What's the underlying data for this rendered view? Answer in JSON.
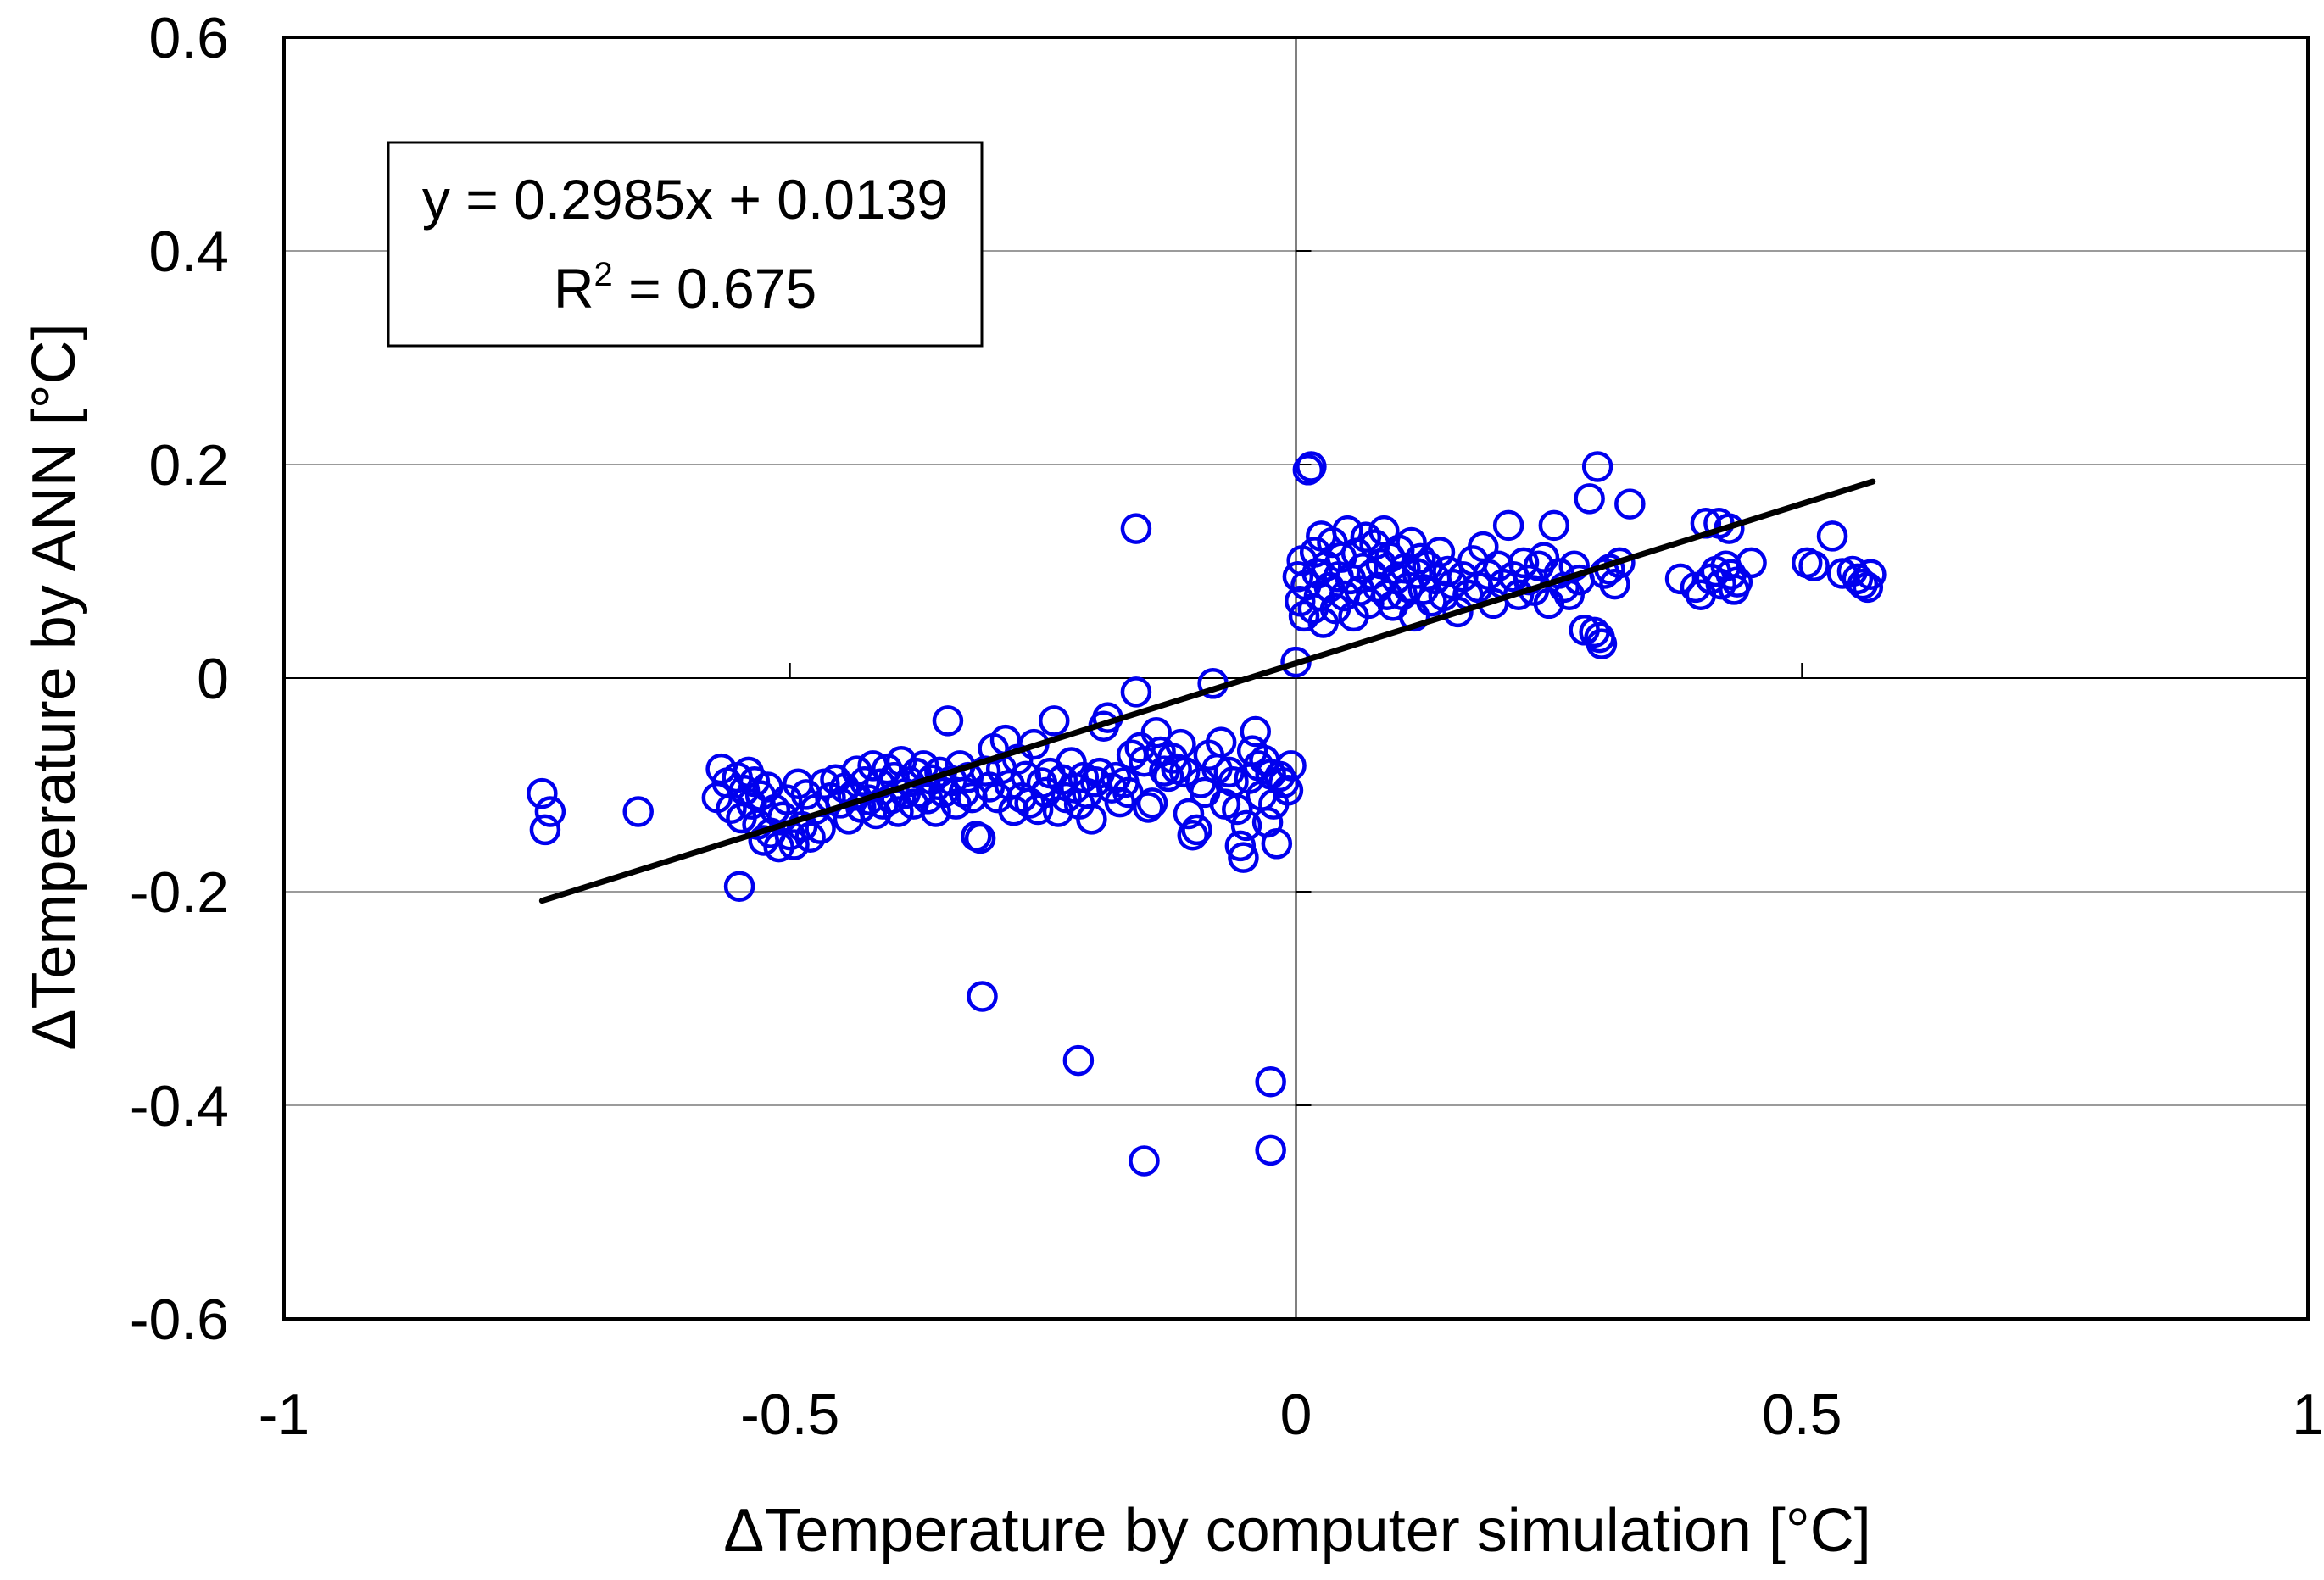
{
  "chart_data": {
    "type": "scatter",
    "xlabel": "ΔTemperature by computer simulation [°C]",
    "ylabel": "ΔTemperature  by ANN [°C]",
    "xlim": [
      -1,
      1
    ],
    "ylim": [
      -0.6,
      0.6
    ],
    "x_ticks": [
      {
        "value": -1,
        "label": "-1"
      },
      {
        "value": -0.5,
        "label": "-0.5"
      },
      {
        "value": 0,
        "label": "0"
      },
      {
        "value": 0.5,
        "label": "0.5"
      },
      {
        "value": 1,
        "label": "1"
      }
    ],
    "y_ticks": [
      {
        "value": -0.6,
        "label": "-0.6"
      },
      {
        "value": -0.4,
        "label": "-0.4"
      },
      {
        "value": -0.2,
        "label": "-0.2"
      },
      {
        "value": 0,
        "label": "0"
      },
      {
        "value": 0.2,
        "label": "0.2"
      },
      {
        "value": 0.4,
        "label": "0.4"
      },
      {
        "value": 0.6,
        "label": "0.6"
      }
    ],
    "grid": "horizontal",
    "marker_color": "#0000ee",
    "marker": "open-circle",
    "trendline": {
      "slope": 0.2985,
      "intercept": 0.0139,
      "x_range": [
        -0.745,
        0.57
      ],
      "color": "#000000"
    },
    "equation": {
      "line1": "y = 0.2985x + 0.0139",
      "r2_prefix": "R",
      "r2_sup": "2",
      "r2_value": " = 0.675"
    },
    "points": [
      [
        -0.745,
        -0.108
      ],
      [
        -0.742,
        -0.142
      ],
      [
        -0.737,
        -0.125
      ],
      [
        -0.65,
        -0.125
      ],
      [
        -0.572,
        -0.112
      ],
      [
        -0.568,
        -0.085
      ],
      [
        -0.562,
        -0.098
      ],
      [
        -0.558,
        -0.122
      ],
      [
        -0.552,
        -0.093
      ],
      [
        -0.548,
        -0.131
      ],
      [
        -0.545,
        -0.105
      ],
      [
        -0.541,
        -0.088
      ],
      [
        -0.538,
        -0.118
      ],
      [
        -0.535,
        -0.097
      ],
      [
        -0.532,
        -0.137
      ],
      [
        -0.529,
        -0.11
      ],
      [
        -0.526,
        -0.152
      ],
      [
        -0.522,
        -0.102
      ],
      [
        -0.519,
        -0.145
      ],
      [
        -0.515,
        -0.123
      ],
      [
        -0.511,
        -0.158
      ],
      [
        -0.507,
        -0.13
      ],
      [
        -0.503,
        -0.114
      ],
      [
        -0.5,
        -0.147
      ],
      [
        -0.496,
        -0.156
      ],
      [
        -0.492,
        -0.099
      ],
      [
        -0.488,
        -0.139
      ],
      [
        -0.484,
        -0.109
      ],
      [
        -0.48,
        -0.149
      ],
      [
        -0.475,
        -0.123
      ],
      [
        -0.47,
        -0.141
      ],
      [
        -0.466,
        -0.099
      ],
      [
        -0.55,
        -0.195
      ],
      [
        -0.46,
        -0.112
      ],
      [
        -0.455,
        -0.095
      ],
      [
        -0.45,
        -0.117
      ],
      [
        -0.446,
        -0.103
      ],
      [
        -0.442,
        -0.132
      ],
      [
        -0.438,
        -0.11
      ],
      [
        -0.434,
        -0.087
      ],
      [
        -0.43,
        -0.121
      ],
      [
        -0.426,
        -0.097
      ],
      [
        -0.422,
        -0.114
      ],
      [
        -0.418,
        -0.082
      ],
      [
        -0.415,
        -0.127
      ],
      [
        -0.411,
        -0.099
      ],
      [
        -0.408,
        -0.118
      ],
      [
        -0.404,
        -0.085
      ],
      [
        -0.4,
        -0.113
      ],
      [
        -0.397,
        -0.093
      ],
      [
        -0.393,
        -0.125
      ],
      [
        -0.39,
        -0.078
      ],
      [
        -0.386,
        -0.108
      ],
      [
        -0.382,
        -0.097
      ],
      [
        -0.378,
        -0.118
      ],
      [
        -0.375,
        -0.089
      ],
      [
        -0.371,
        -0.107
      ],
      [
        -0.368,
        -0.082
      ],
      [
        -0.364,
        -0.113
      ],
      [
        -0.36,
        -0.095
      ],
      [
        -0.356,
        -0.125
      ],
      [
        -0.352,
        -0.088
      ],
      [
        -0.348,
        -0.107
      ],
      [
        -0.344,
        -0.04
      ],
      [
        -0.34,
        -0.096
      ],
      [
        -0.336,
        -0.118
      ],
      [
        -0.332,
        -0.082
      ],
      [
        -0.328,
        -0.107
      ],
      [
        -0.324,
        -0.093
      ],
      [
        -0.32,
        -0.112
      ],
      [
        -0.316,
        -0.148
      ],
      [
        -0.312,
        -0.15
      ],
      [
        -0.307,
        -0.087
      ],
      [
        -0.303,
        -0.102
      ],
      [
        -0.299,
        -0.066
      ],
      [
        -0.295,
        -0.112
      ],
      [
        -0.291,
        -0.085
      ],
      [
        -0.287,
        -0.058
      ],
      [
        -0.283,
        -0.1
      ],
      [
        -0.279,
        -0.124
      ],
      [
        -0.275,
        -0.076
      ],
      [
        -0.271,
        -0.112
      ],
      [
        -0.267,
        -0.092
      ],
      [
        -0.263,
        -0.117
      ],
      [
        -0.259,
        -0.062
      ],
      [
        -0.255,
        -0.123
      ],
      [
        -0.251,
        -0.098
      ],
      [
        -0.247,
        -0.107
      ],
      [
        -0.243,
        -0.089
      ],
      [
        -0.239,
        -0.04
      ],
      [
        -0.235,
        -0.125
      ],
      [
        -0.231,
        -0.095
      ],
      [
        -0.227,
        -0.112
      ],
      [
        -0.222,
        -0.079
      ],
      [
        -0.218,
        -0.103
      ],
      [
        -0.214,
        -0.118
      ],
      [
        -0.21,
        -0.093
      ],
      [
        -0.206,
        -0.108
      ],
      [
        -0.202,
        -0.132
      ],
      [
        -0.198,
        -0.097
      ],
      [
        -0.194,
        -0.089
      ],
      [
        -0.19,
        -0.045
      ],
      [
        -0.186,
        -0.037
      ],
      [
        -0.182,
        -0.103
      ],
      [
        -0.178,
        -0.093
      ],
      [
        -0.174,
        -0.116
      ],
      [
        -0.17,
        -0.098
      ],
      [
        -0.166,
        -0.107
      ],
      [
        -0.162,
        -0.072
      ],
      [
        -0.158,
        -0.013
      ],
      [
        -0.154,
        -0.065
      ],
      [
        -0.15,
        -0.078
      ],
      [
        -0.146,
        -0.121
      ],
      [
        -0.142,
        -0.117
      ],
      [
        -0.138,
        -0.051
      ],
      [
        -0.134,
        -0.069
      ],
      [
        -0.13,
        -0.087
      ],
      [
        -0.126,
        -0.092
      ],
      [
        -0.122,
        -0.075
      ],
      [
        -0.118,
        -0.085
      ],
      [
        -0.114,
        -0.062
      ],
      [
        -0.11,
        -0.088
      ],
      [
        -0.106,
        -0.127
      ],
      [
        -0.102,
        -0.147
      ],
      [
        -0.098,
        -0.142
      ],
      [
        -0.094,
        -0.098
      ],
      [
        -0.09,
        -0.107
      ],
      [
        -0.086,
        -0.072
      ],
      [
        -0.082,
        -0.005
      ],
      [
        -0.078,
        -0.085
      ],
      [
        -0.074,
        -0.06
      ],
      [
        -0.07,
        -0.118
      ],
      [
        -0.066,
        -0.088
      ],
      [
        -0.062,
        -0.097
      ],
      [
        -0.058,
        -0.123
      ],
      [
        -0.055,
        -0.157
      ],
      [
        -0.052,
        -0.168
      ],
      [
        -0.049,
        -0.138
      ],
      [
        -0.046,
        -0.094
      ],
      [
        -0.043,
        -0.068
      ],
      [
        -0.04,
        -0.05
      ],
      [
        -0.037,
        -0.082
      ],
      [
        -0.034,
        -0.11
      ],
      [
        -0.031,
        -0.077
      ],
      [
        -0.028,
        -0.135
      ],
      [
        -0.025,
        -0.09
      ],
      [
        -0.022,
        -0.118
      ],
      [
        -0.019,
        -0.155
      ],
      [
        -0.016,
        -0.092
      ],
      [
        -0.012,
        -0.098
      ],
      [
        -0.008,
        -0.105
      ],
      [
        -0.005,
        -0.082
      ],
      [
        -0.158,
        0.14
      ],
      [
        -0.31,
        -0.298
      ],
      [
        -0.215,
        -0.358
      ],
      [
        -0.15,
        -0.452
      ],
      [
        -0.025,
        -0.378
      ],
      [
        -0.025,
        -0.442
      ],
      [
        0.0,
        0.015
      ],
      [
        0.002,
        0.095
      ],
      [
        0.004,
        0.072
      ],
      [
        0.006,
        0.11
      ],
      [
        0.008,
        0.058
      ],
      [
        0.01,
        0.087
      ],
      [
        0.012,
        0.195
      ],
      [
        0.015,
        0.198
      ],
      [
        0.017,
        0.065
      ],
      [
        0.019,
        0.118
      ],
      [
        0.021,
        0.098
      ],
      [
        0.023,
        0.077
      ],
      [
        0.025,
        0.133
      ],
      [
        0.027,
        0.052
      ],
      [
        0.03,
        0.105
      ],
      [
        0.033,
        0.085
      ],
      [
        0.036,
        0.127
      ],
      [
        0.039,
        0.065
      ],
      [
        0.042,
        0.095
      ],
      [
        0.045,
        0.113
      ],
      [
        0.048,
        0.077
      ],
      [
        0.051,
        0.138
      ],
      [
        0.054,
        0.093
      ],
      [
        0.057,
        0.058
      ],
      [
        0.06,
        0.117
      ],
      [
        0.063,
        0.082
      ],
      [
        0.066,
        0.103
      ],
      [
        0.069,
        0.132
      ],
      [
        0.072,
        0.07
      ],
      [
        0.075,
        0.097
      ],
      [
        0.078,
        0.125
      ],
      [
        0.081,
        0.085
      ],
      [
        0.084,
        0.107
      ],
      [
        0.087,
        0.138
      ],
      [
        0.09,
        0.078
      ],
      [
        0.093,
        0.113
      ],
      [
        0.096,
        0.068
      ],
      [
        0.099,
        0.093
      ],
      [
        0.102,
        0.12
      ],
      [
        0.105,
        0.078
      ],
      [
        0.108,
        0.103
      ],
      [
        0.111,
        0.085
      ],
      [
        0.114,
        0.127
      ],
      [
        0.117,
        0.058
      ],
      [
        0.12,
        0.098
      ],
      [
        0.123,
        0.112
      ],
      [
        0.126,
        0.083
      ],
      [
        0.13,
        0.105
      ],
      [
        0.134,
        0.072
      ],
      [
        0.138,
        0.093
      ],
      [
        0.142,
        0.118
      ],
      [
        0.146,
        0.077
      ],
      [
        0.15,
        0.1
      ],
      [
        0.155,
        0.088
      ],
      [
        0.16,
        0.062
      ],
      [
        0.165,
        0.095
      ],
      [
        0.17,
        0.078
      ],
      [
        0.175,
        0.11
      ],
      [
        0.18,
        0.085
      ],
      [
        0.185,
        0.123
      ],
      [
        0.19,
        0.097
      ],
      [
        0.195,
        0.07
      ],
      [
        0.2,
        0.105
      ],
      [
        0.205,
        0.088
      ],
      [
        0.21,
        0.143
      ],
      [
        0.215,
        0.095
      ],
      [
        0.22,
        0.078
      ],
      [
        0.225,
        0.108
      ],
      [
        0.23,
        0.092
      ],
      [
        0.235,
        0.082
      ],
      [
        0.24,
        0.105
      ],
      [
        0.245,
        0.113
      ],
      [
        0.25,
        0.07
      ],
      [
        0.255,
        0.143
      ],
      [
        0.26,
        0.098
      ],
      [
        0.265,
        0.085
      ],
      [
        0.27,
        0.078
      ],
      [
        0.275,
        0.105
      ],
      [
        0.28,
        0.092
      ],
      [
        0.285,
        0.045
      ],
      [
        0.29,
        0.168
      ],
      [
        0.295,
        0.043
      ],
      [
        0.298,
        0.198
      ],
      [
        0.3,
        0.038
      ],
      [
        0.302,
        0.032
      ],
      [
        0.305,
        0.098
      ],
      [
        0.31,
        0.102
      ],
      [
        0.315,
        0.088
      ],
      [
        0.32,
        0.108
      ],
      [
        0.33,
        0.163
      ],
      [
        0.38,
        0.093
      ],
      [
        0.395,
        0.085
      ],
      [
        0.4,
        0.078
      ],
      [
        0.405,
        0.145
      ],
      [
        0.41,
        0.093
      ],
      [
        0.415,
        0.1
      ],
      [
        0.418,
        0.145
      ],
      [
        0.42,
        0.088
      ],
      [
        0.425,
        0.105
      ],
      [
        0.428,
        0.14
      ],
      [
        0.43,
        0.097
      ],
      [
        0.433,
        0.083
      ],
      [
        0.436,
        0.09
      ],
      [
        0.45,
        0.108
      ],
      [
        0.505,
        0.108
      ],
      [
        0.512,
        0.105
      ],
      [
        0.53,
        0.133
      ],
      [
        0.54,
        0.098
      ],
      [
        0.55,
        0.1
      ],
      [
        0.555,
        0.093
      ],
      [
        0.56,
        0.088
      ],
      [
        0.565,
        0.085
      ],
      [
        0.568,
        0.097
      ]
    ]
  }
}
